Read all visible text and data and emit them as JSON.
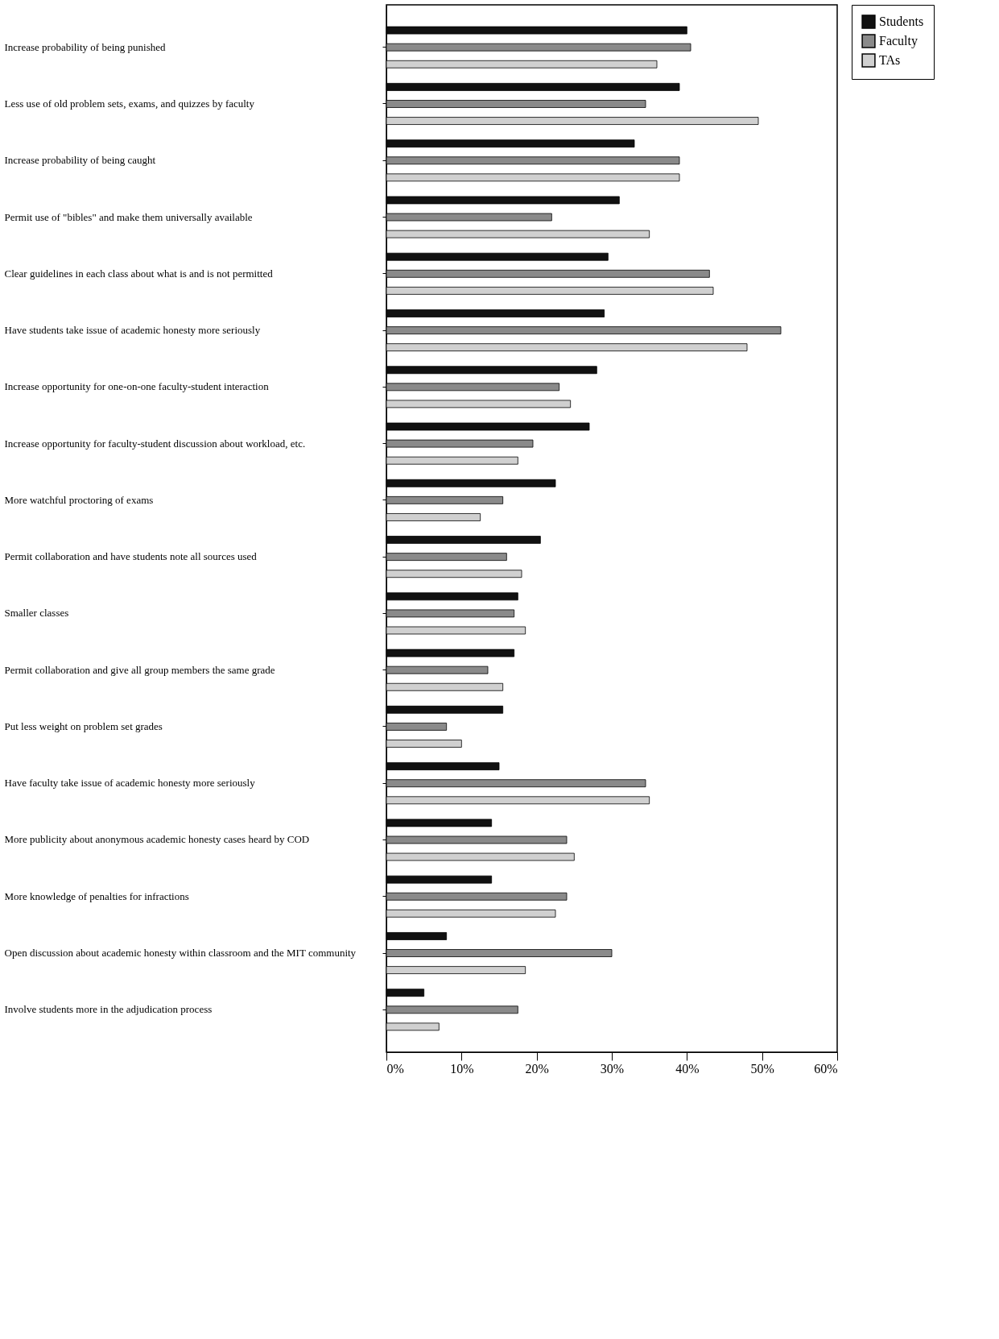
{
  "chart_data": {
    "type": "bar",
    "orientation": "horizontal",
    "categories": [
      "Increase probability of being punished",
      "Less use of old problem sets, exams, and quizzes by faculty",
      "Increase probability of being caught",
      "Permit use of \"bibles\" and make them universally available",
      "Clear guidelines in each class about what is and is not permitted",
      "Have students take issue of academic honesty more seriously",
      "Increase opportunity for one-on-one faculty-student interaction",
      "Increase opportunity for faculty-student discussion about workload, etc.",
      "More watchful proctoring of exams",
      "Permit collaboration and have students note all sources used",
      "Smaller classes",
      "Permit collaboration and give all group members the same grade",
      "Put less weight on problem set grades",
      "Have faculty take issue of academic honesty more seriously",
      "More publicity about anonymous academic honesty cases heard by COD",
      "More knowledge of penalties for infractions",
      "Open discussion about academic honesty within classroom and the MIT community",
      "Involve students more in the adjudication process"
    ],
    "series": [
      {
        "name": "Students",
        "color": "#111111",
        "values": [
          40,
          39,
          33,
          31,
          29.5,
          29,
          28,
          27,
          22.5,
          20.5,
          17.5,
          17,
          15.5,
          15,
          14,
          14,
          8,
          5
        ]
      },
      {
        "name": "Faculty",
        "color": "#8a8a8a",
        "values": [
          40.5,
          34.5,
          39,
          22,
          43,
          52.5,
          23,
          19.5,
          15.5,
          16,
          17,
          13.5,
          8,
          34.5,
          24,
          24,
          30,
          17.5
        ]
      },
      {
        "name": "TAs",
        "color": "#d0d0d0",
        "values": [
          36,
          49.5,
          39,
          35,
          43.5,
          48,
          24.5,
          17.5,
          12.5,
          18,
          18.5,
          15.5,
          10,
          35,
          25,
          22.5,
          18.5,
          7
        ]
      }
    ],
    "xlim": [
      0,
      60
    ],
    "xticks": [
      {
        "value": 0,
        "label": "0%"
      },
      {
        "value": 10,
        "label": "10%"
      },
      {
        "value": 20,
        "label": "20%"
      },
      {
        "value": 30,
        "label": "30%"
      },
      {
        "value": 40,
        "label": "40%"
      },
      {
        "value": 50,
        "label": "50%"
      },
      {
        "value": 60,
        "label": "60%"
      }
    ],
    "legend": "right",
    "grid": false
  }
}
